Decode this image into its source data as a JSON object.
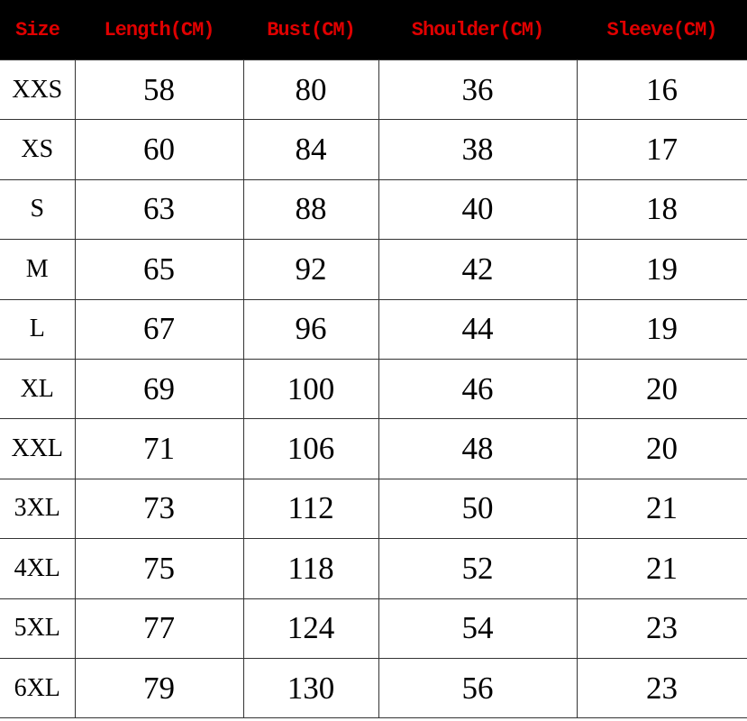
{
  "headers": [
    "Size",
    "Length(CM)",
    "Bust(CM)",
    "Shoulder(CM)",
    "Sleeve(CM)"
  ],
  "header_text_color": "#e00000",
  "header_bg_color": "#000000",
  "rows": [
    [
      "XXS",
      "58",
      "80",
      "36",
      "16"
    ],
    [
      "XS",
      "60",
      "84",
      "38",
      "17"
    ],
    [
      "S",
      "63",
      "88",
      "40",
      "18"
    ],
    [
      "M",
      "65",
      "92",
      "42",
      "19"
    ],
    [
      "L",
      "67",
      "96",
      "44",
      "19"
    ],
    [
      "XL",
      "69",
      "100",
      "46",
      "20"
    ],
    [
      "XXL",
      "71",
      "106",
      "48",
      "20"
    ],
    [
      "3XL",
      "73",
      "112",
      "50",
      "21"
    ],
    [
      "4XL",
      "75",
      "118",
      "52",
      "21"
    ],
    [
      "5XL",
      "77",
      "124",
      "54",
      "23"
    ],
    [
      "6XL",
      "79",
      "130",
      "56",
      "23"
    ]
  ]
}
